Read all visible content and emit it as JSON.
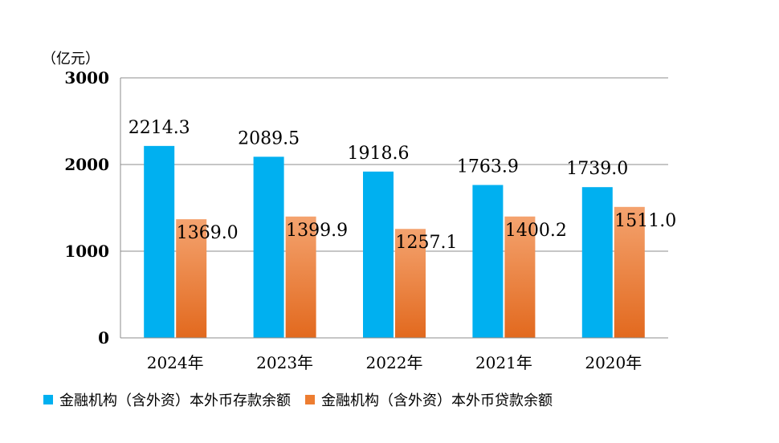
{
  "chart_data": {
    "type": "bar",
    "unit_label": "（亿元）",
    "categories": [
      "2024年",
      "2023年",
      "2022年",
      "2021年",
      "2020年"
    ],
    "series": [
      {
        "name": "金融机构（含外资）本外币存款余额",
        "values": [
          2214.3,
          2089.5,
          1918.6,
          1763.9,
          1739.0
        ],
        "labels": [
          "2214.3",
          "2089.5",
          "1918.6",
          "1763.9",
          "1739.0"
        ],
        "color": "#00B0F0"
      },
      {
        "name": "金融机构（含外资）本外币贷款余额",
        "values": [
          1369.0,
          1399.9,
          1257.1,
          1400.2,
          1511.0
        ],
        "labels": [
          "1369.0",
          "1399.9",
          "1257.1",
          "1400.2",
          "1511.0"
        ],
        "color": "#ED7D31"
      }
    ],
    "ylim": [
      0,
      3000
    ],
    "yticks": [
      0,
      1000,
      2000,
      3000
    ],
    "ytick_labels": [
      "0",
      "1000",
      "2000",
      "3000"
    ],
    "grid": true,
    "legend": "bottom"
  }
}
